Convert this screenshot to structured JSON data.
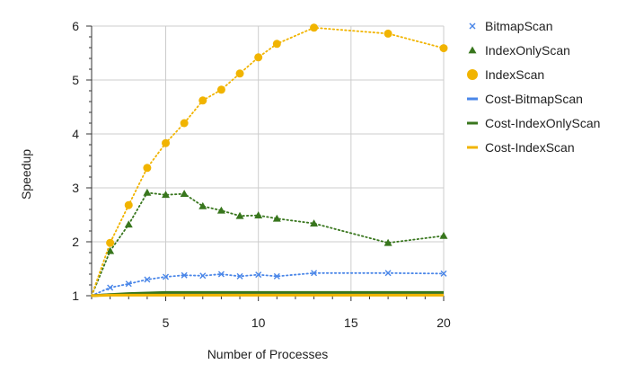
{
  "chart_data": {
    "type": "line",
    "title": "",
    "xlabel": "Number of Processes",
    "ylabel": "Speedup",
    "xlim": [
      1,
      20
    ],
    "ylim": [
      1,
      6
    ],
    "x_ticks": [
      5,
      10,
      15,
      20
    ],
    "y_ticks": [
      1,
      2,
      3,
      4,
      5,
      6
    ],
    "grid": true,
    "legend_position": "right",
    "series": [
      {
        "name": "BitmapScan",
        "color": "#4a86e8",
        "marker": "x",
        "line_style": "dotted",
        "x": [
          1,
          2,
          3,
          4,
          5,
          6,
          7,
          8,
          9,
          10,
          11,
          13,
          17,
          20
        ],
        "values": [
          1.0,
          1.15,
          1.22,
          1.3,
          1.35,
          1.38,
          1.37,
          1.4,
          1.36,
          1.39,
          1.36,
          1.42,
          1.42,
          1.41
        ]
      },
      {
        "name": "IndexOnlyScan",
        "color": "#38761d",
        "marker": "triangle",
        "line_style": "dotted",
        "x": [
          1,
          2,
          3,
          4,
          5,
          6,
          7,
          8,
          9,
          10,
          11,
          13,
          17,
          20
        ],
        "values": [
          1.0,
          1.83,
          2.32,
          2.91,
          2.87,
          2.89,
          2.66,
          2.58,
          2.48,
          2.49,
          2.43,
          2.34,
          1.98,
          2.11
        ]
      },
      {
        "name": "IndexScan",
        "color": "#f1b400",
        "marker": "circle",
        "line_style": "dotted",
        "x": [
          1,
          2,
          3,
          4,
          5,
          6,
          7,
          8,
          9,
          10,
          11,
          13,
          17,
          20
        ],
        "values": [
          1.0,
          1.98,
          2.68,
          3.37,
          3.83,
          4.2,
          4.62,
          4.82,
          5.12,
          5.42,
          5.67,
          5.97,
          5.86,
          5.59
        ]
      },
      {
        "name": "Cost-BitmapScan",
        "color": "#4a86e8",
        "marker": "none",
        "line_style": "solid",
        "x": [
          1,
          2,
          3,
          4,
          5,
          6,
          7,
          8,
          9,
          10,
          11,
          13,
          17,
          20
        ],
        "values": [
          1.0,
          1.02,
          1.03,
          1.04,
          1.05,
          1.05,
          1.05,
          1.05,
          1.05,
          1.05,
          1.05,
          1.05,
          1.05,
          1.05
        ]
      },
      {
        "name": "Cost-IndexOnlyScan",
        "color": "#38761d",
        "marker": "none",
        "line_style": "solid",
        "x": [
          1,
          2,
          3,
          4,
          5,
          6,
          7,
          8,
          9,
          10,
          11,
          13,
          17,
          20
        ],
        "values": [
          1.0,
          1.02,
          1.04,
          1.05,
          1.06,
          1.06,
          1.06,
          1.06,
          1.06,
          1.06,
          1.06,
          1.06,
          1.06,
          1.06
        ]
      },
      {
        "name": "Cost-IndexScan",
        "color": "#f1b400",
        "marker": "none",
        "line_style": "solid",
        "x": [
          1,
          2,
          3,
          4,
          5,
          6,
          7,
          8,
          9,
          10,
          11,
          13,
          17,
          20
        ],
        "values": [
          1.0,
          1.01,
          1.01,
          1.01,
          1.01,
          1.01,
          1.01,
          1.01,
          1.01,
          1.01,
          1.01,
          1.01,
          1.01,
          1.01
        ]
      }
    ]
  }
}
